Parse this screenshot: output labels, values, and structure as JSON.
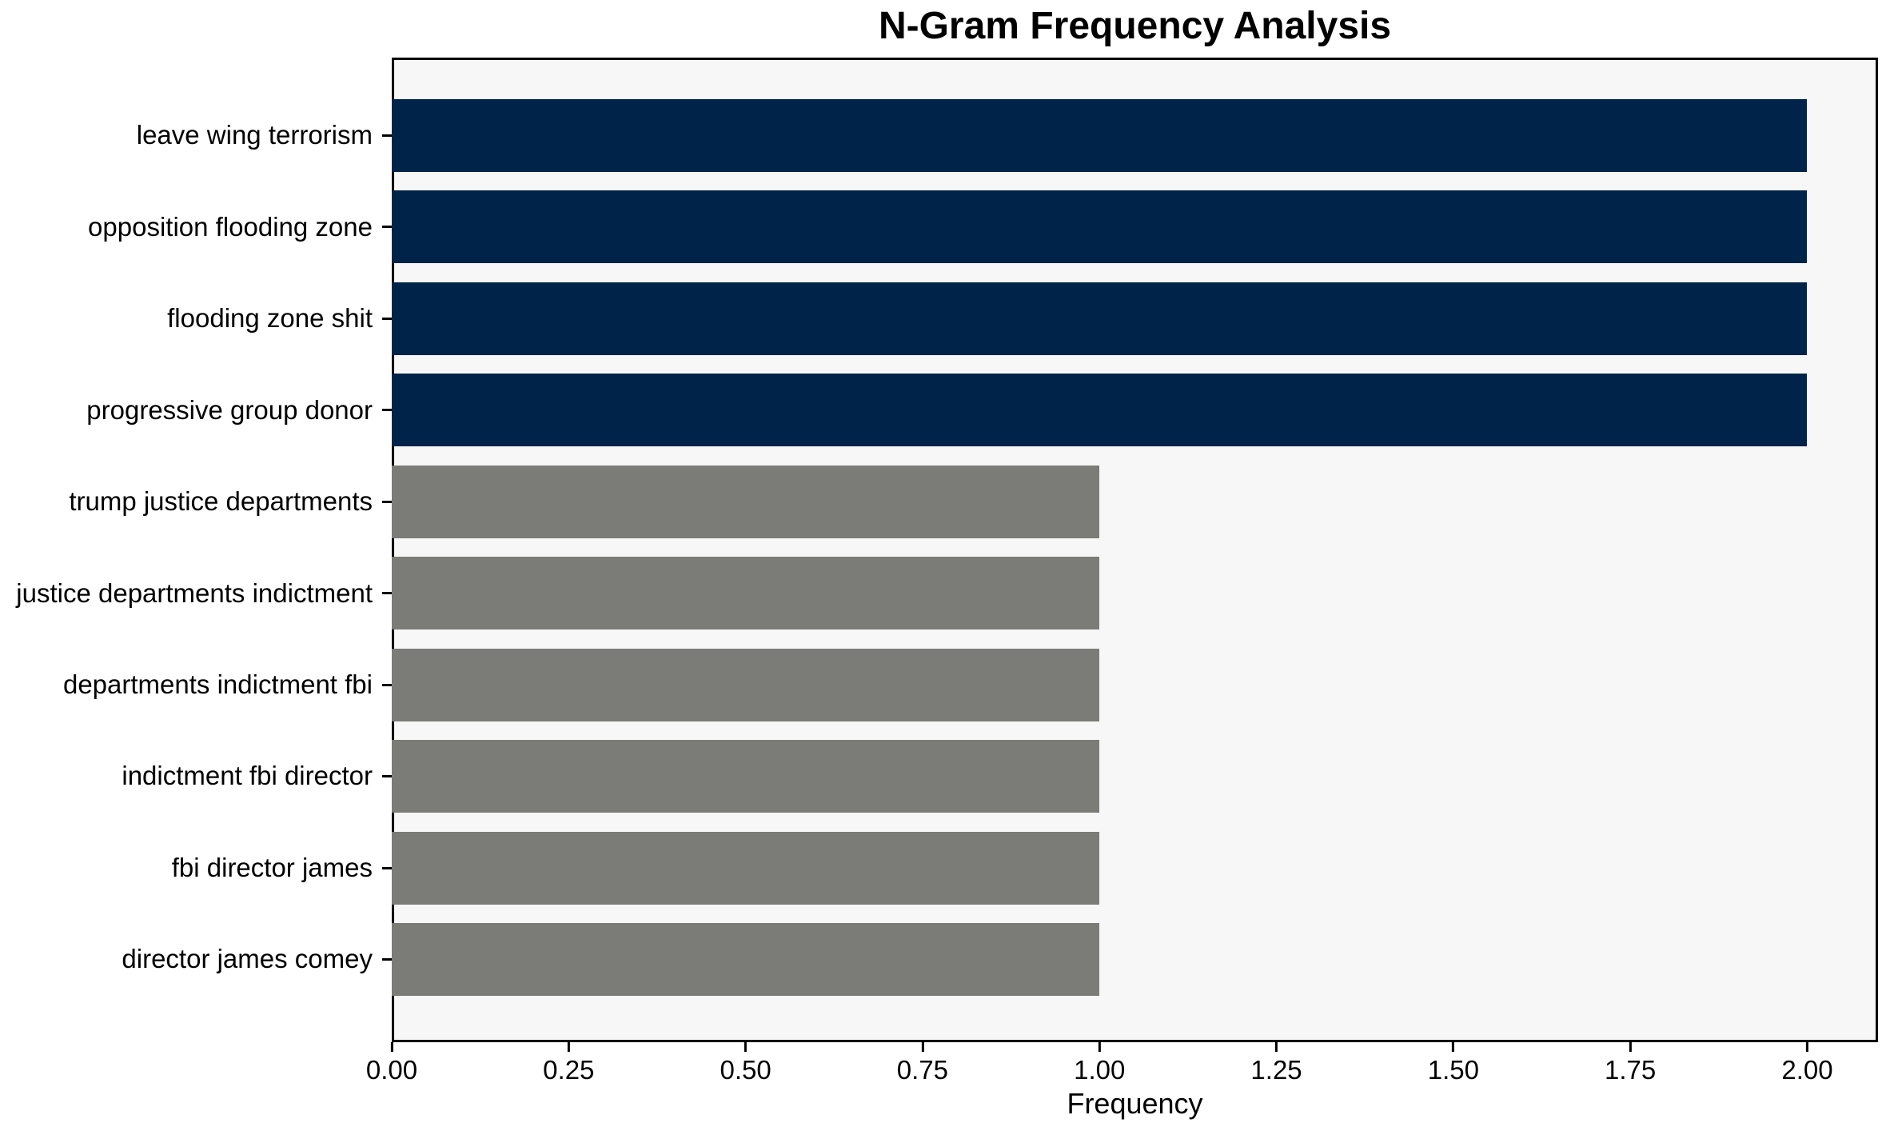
{
  "chart_data": {
    "type": "bar",
    "orientation": "horizontal",
    "title": "N-Gram Frequency Analysis",
    "xlabel": "Frequency",
    "ylabel": "",
    "categories": [
      "leave wing terrorism",
      "opposition flooding zone",
      "flooding zone shit",
      "progressive group donor",
      "trump justice departments",
      "justice departments indictment",
      "departments indictment fbi",
      "indictment fbi director",
      "fbi director james",
      "director james comey"
    ],
    "values": [
      2,
      2,
      2,
      2,
      1,
      1,
      1,
      1,
      1,
      1
    ],
    "bar_colors": [
      "#00234a",
      "#00234a",
      "#00234a",
      "#00234a",
      "#7b7b78",
      "#7b7b78",
      "#7b7b78",
      "#7b7b78",
      "#7b7b78",
      "#7b7b78"
    ],
    "xlim": [
      0,
      2.1
    ],
    "xticks": [
      {
        "value": 0.0,
        "label": "0.00"
      },
      {
        "value": 0.25,
        "label": "0.25"
      },
      {
        "value": 0.5,
        "label": "0.50"
      },
      {
        "value": 0.75,
        "label": "0.75"
      },
      {
        "value": 1.0,
        "label": "1.00"
      },
      {
        "value": 1.25,
        "label": "1.25"
      },
      {
        "value": 1.5,
        "label": "1.50"
      },
      {
        "value": 1.75,
        "label": "1.75"
      },
      {
        "value": 2.0,
        "label": "2.00"
      }
    ],
    "grid": false,
    "legend": null,
    "colors": {
      "high_freq_bar": "#00234a",
      "low_freq_bar": "#7b7b78",
      "plot_background": "#f7f7f7",
      "figure_background": "#ffffff",
      "axis": "#000000",
      "text": "#000000"
    }
  }
}
